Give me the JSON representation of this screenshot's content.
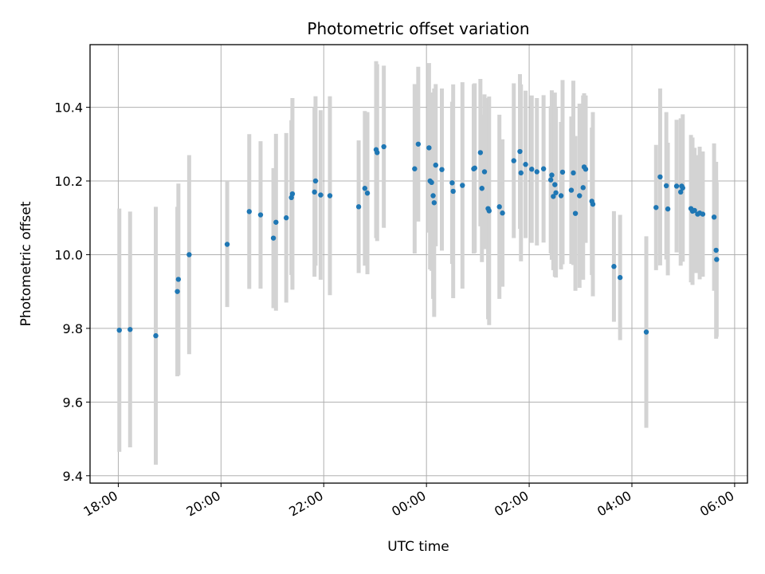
{
  "chart_data": {
    "type": "scatter",
    "title": "Photometric offset variation",
    "xlabel": "UTC time",
    "ylabel": "Photometric offset",
    "x_unit": "hours since 18:00 UTC",
    "xlim": [
      -0.55,
      12.25
    ],
    "ylim": [
      9.38,
      10.57
    ],
    "xticks": [
      {
        "x": 0,
        "label": "18:00"
      },
      {
        "x": 2,
        "label": "20:00"
      },
      {
        "x": 4,
        "label": "22:00"
      },
      {
        "x": 6,
        "label": "00:00"
      },
      {
        "x": 8,
        "label": "02:00"
      },
      {
        "x": 10,
        "label": "04:00"
      },
      {
        "x": 12,
        "label": "06:00"
      }
    ],
    "yticks": [
      9.4,
      9.6,
      9.8,
      10.0,
      10.2,
      10.4
    ],
    "grid": true,
    "colors": {
      "point": "#1f77b4",
      "errorbar": "#d3d3d3",
      "grid": "#b0b0b0"
    },
    "series": [
      {
        "points": [
          [
            0.02,
            9.795,
            0.33
          ],
          [
            0.23,
            9.797,
            0.32
          ],
          [
            0.73,
            9.78,
            0.35
          ],
          [
            1.15,
            9.9,
            0.23
          ],
          [
            1.17,
            9.933,
            0.26
          ],
          [
            1.38,
            10.0,
            0.27
          ],
          [
            2.12,
            10.028,
            0.17
          ],
          [
            2.55,
            10.117,
            0.21
          ],
          [
            2.77,
            10.108,
            0.2
          ],
          [
            3.02,
            10.045,
            0.19
          ],
          [
            3.07,
            10.088,
            0.24
          ],
          [
            3.27,
            10.1,
            0.23
          ],
          [
            3.37,
            10.155,
            0.21
          ],
          [
            3.39,
            10.165,
            0.26
          ],
          [
            3.82,
            10.17,
            0.23
          ],
          [
            3.84,
            10.2,
            0.23
          ],
          [
            3.94,
            10.162,
            0.23
          ],
          [
            4.12,
            10.16,
            0.27
          ],
          [
            4.68,
            10.13,
            0.18
          ],
          [
            4.8,
            10.18,
            0.21
          ],
          [
            4.85,
            10.167,
            0.22
          ],
          [
            5.02,
            10.285,
            0.24
          ],
          [
            5.04,
            10.277,
            0.24
          ],
          [
            5.17,
            10.293,
            0.22
          ],
          [
            5.77,
            10.233,
            0.23
          ],
          [
            5.84,
            10.3,
            0.21
          ],
          [
            6.05,
            10.29,
            0.23
          ],
          [
            6.07,
            10.2,
            0.24
          ],
          [
            6.1,
            10.196,
            0.24
          ],
          [
            6.13,
            10.16,
            0.28
          ],
          [
            6.15,
            10.141,
            0.31
          ],
          [
            6.18,
            10.243,
            0.22
          ],
          [
            6.3,
            10.231,
            0.22
          ],
          [
            6.5,
            10.195,
            0.22
          ],
          [
            6.52,
            10.172,
            0.29
          ],
          [
            6.7,
            10.188,
            0.28
          ],
          [
            6.92,
            10.233,
            0.23
          ],
          [
            6.94,
            10.235,
            0.23
          ],
          [
            7.05,
            10.277,
            0.2
          ],
          [
            7.08,
            10.18,
            0.2
          ],
          [
            7.13,
            10.225,
            0.21
          ],
          [
            7.2,
            10.125,
            0.3
          ],
          [
            7.22,
            10.119,
            0.31
          ],
          [
            7.42,
            10.13,
            0.25
          ],
          [
            7.48,
            10.113,
            0.2
          ],
          [
            7.7,
            10.255,
            0.21
          ],
          [
            7.82,
            10.28,
            0.21
          ],
          [
            7.84,
            10.222,
            0.24
          ],
          [
            7.93,
            10.245,
            0.2
          ],
          [
            8.05,
            10.232,
            0.2
          ],
          [
            8.15,
            10.225,
            0.2
          ],
          [
            8.28,
            10.233,
            0.2
          ],
          [
            8.42,
            10.203,
            0.2
          ],
          [
            8.44,
            10.216,
            0.23
          ],
          [
            8.47,
            10.158,
            0.2
          ],
          [
            8.5,
            10.19,
            0.25
          ],
          [
            8.52,
            10.168,
            0.23
          ],
          [
            8.62,
            10.16,
            0.2
          ],
          [
            8.65,
            10.224,
            0.25
          ],
          [
            8.82,
            10.175,
            0.2
          ],
          [
            8.86,
            10.222,
            0.25
          ],
          [
            8.9,
            10.112,
            0.21
          ],
          [
            8.98,
            10.16,
            0.25
          ],
          [
            9.05,
            10.182,
            0.25
          ],
          [
            9.07,
            10.238,
            0.2
          ],
          [
            9.1,
            10.232,
            0.2
          ],
          [
            9.22,
            10.145,
            0.2
          ],
          [
            9.24,
            10.137,
            0.25
          ],
          [
            9.65,
            9.968,
            0.15
          ],
          [
            9.77,
            9.938,
            0.17
          ],
          [
            10.28,
            9.79,
            0.26
          ],
          [
            10.47,
            10.128,
            0.17
          ],
          [
            10.55,
            10.211,
            0.24
          ],
          [
            10.67,
            10.187,
            0.2
          ],
          [
            10.7,
            10.124,
            0.18
          ],
          [
            10.87,
            10.186,
            0.18
          ],
          [
            10.95,
            10.17,
            0.2
          ],
          [
            10.97,
            10.186,
            0.18
          ],
          [
            10.99,
            10.181,
            0.2
          ],
          [
            11.15,
            10.125,
            0.2
          ],
          [
            11.18,
            10.118,
            0.2
          ],
          [
            11.22,
            10.12,
            0.17
          ],
          [
            11.28,
            10.11,
            0.16
          ],
          [
            11.32,
            10.113,
            0.18
          ],
          [
            11.38,
            10.11,
            0.17
          ],
          [
            11.6,
            10.102,
            0.2
          ],
          [
            11.64,
            10.012,
            0.24
          ],
          [
            11.65,
            9.987,
            0.21
          ]
        ]
      }
    ]
  }
}
